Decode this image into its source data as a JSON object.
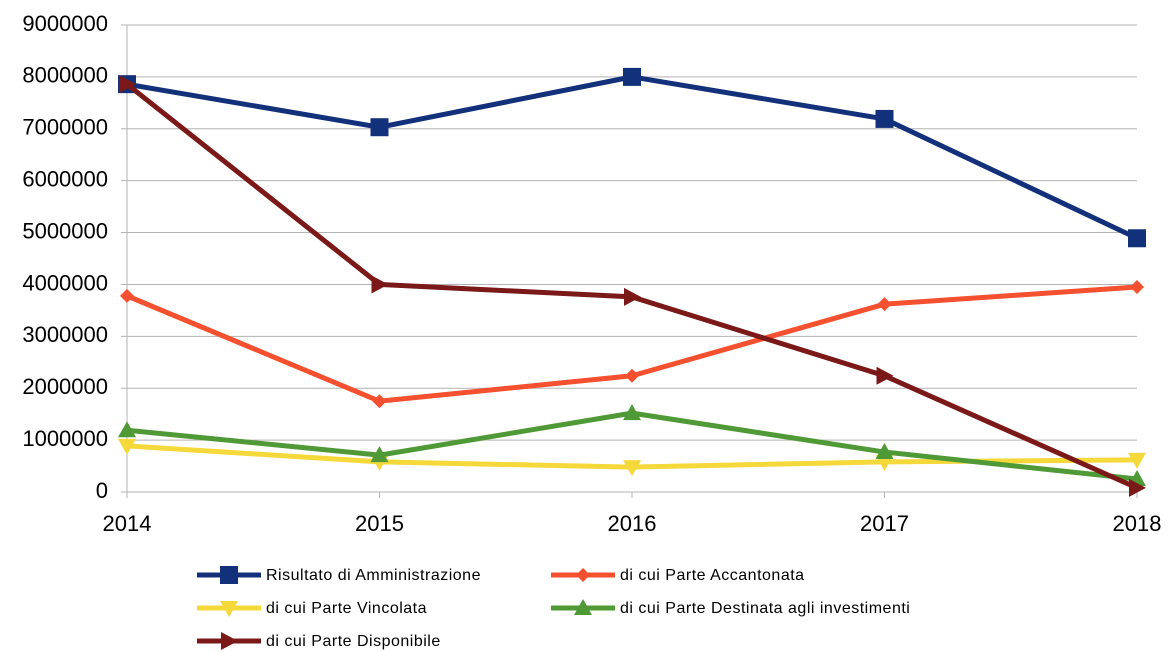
{
  "chart_data": {
    "type": "line",
    "categories": [
      "2014",
      "2015",
      "2016",
      "2017",
      "2018"
    ],
    "series": [
      {
        "name": "Risultato di Amministrazione",
        "color": "#13317a",
        "marker": "square",
        "values": [
          7860000,
          7030000,
          8000000,
          7190000,
          4890000
        ]
      },
      {
        "name": "di cui Parte Accantonata",
        "color": "#f5502f",
        "marker": "diamond",
        "values": [
          3780000,
          1750000,
          2240000,
          3620000,
          3950000
        ]
      },
      {
        "name": "di cui Parte Vincolata",
        "color": "#f5d83a",
        "marker": "triangle-down",
        "values": [
          890000,
          580000,
          480000,
          580000,
          620000
        ]
      },
      {
        "name": "di cui Parte Destinata agli investimenti",
        "color": "#4f9a36",
        "marker": "triangle-up",
        "values": [
          1190000,
          710000,
          1520000,
          770000,
          250000
        ]
      },
      {
        "name": "di cui Parte Disponibile",
        "color": "#7b1818",
        "marker": "triangle-right",
        "values": [
          7860000,
          4000000,
          3760000,
          2240000,
          80000
        ]
      }
    ],
    "ylim": [
      0,
      9000000
    ],
    "yticks": [
      0,
      1000000,
      2000000,
      3000000,
      4000000,
      5000000,
      6000000,
      7000000,
      8000000,
      9000000
    ],
    "grid": true,
    "legend": "bottom"
  }
}
